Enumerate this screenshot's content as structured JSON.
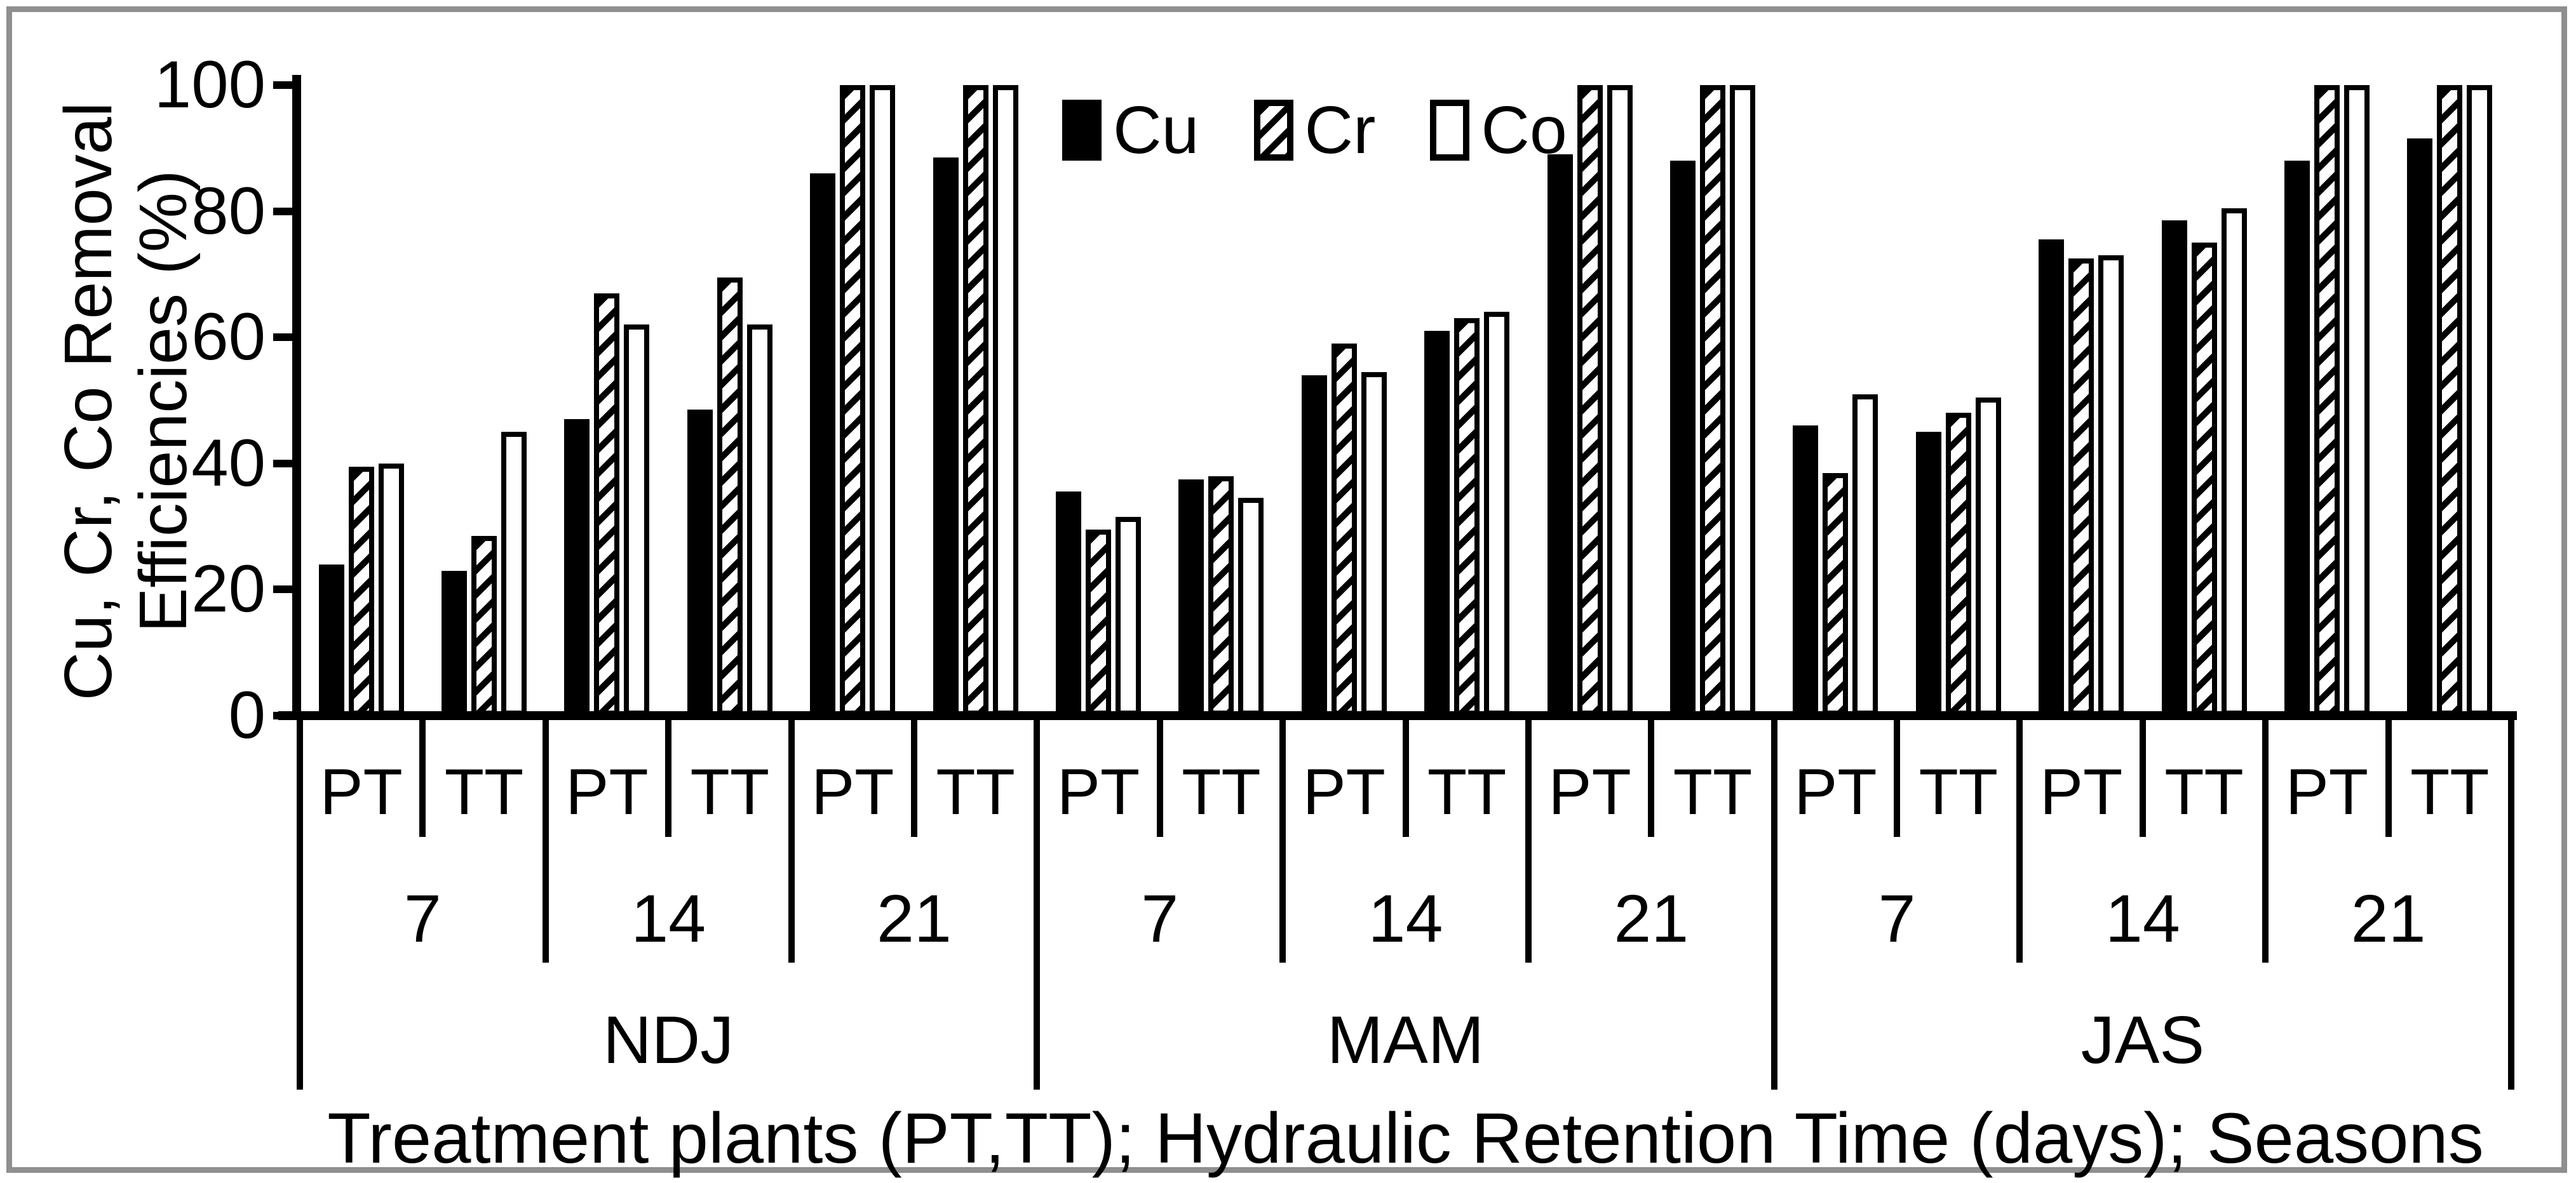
{
  "figure": {
    "background_color": "#ffffff",
    "frame_color": "#8f8f8f",
    "ink_color": "#000000"
  },
  "chart_data": {
    "type": "bar",
    "title": "",
    "ylabel": "Cu, Cr, Co Removal Efficiencies (%)",
    "xlabel": "Treatment plants (PT,TT); Hydraulic Retention Time (days); Seasons",
    "ylim": [
      0,
      100
    ],
    "yticks": [
      "0",
      "20",
      "40",
      "60",
      "80",
      "100"
    ],
    "ytick_values": [
      0,
      20,
      40,
      60,
      80,
      100
    ],
    "grid": false,
    "legend_position": "top-center",
    "legend": [
      "Cu",
      "Cr",
      "Co"
    ],
    "series_styles": {
      "Cu": {
        "pattern": "solid",
        "fill": "#000000"
      },
      "Cr": {
        "pattern": "diagonal-hatch",
        "fill": "#ffffff",
        "stripe": "#000000"
      },
      "Co": {
        "pattern": "none",
        "fill": "#ffffff",
        "border": "#000000"
      }
    },
    "structure": {
      "seasons": [
        "NDJ",
        "MAM",
        "JAS"
      ],
      "days_per_season": [
        "7",
        "14",
        "21"
      ],
      "plants_per_day": [
        "PT",
        "TT"
      ]
    },
    "categories": [
      "NDJ-7-PT",
      "NDJ-7-TT",
      "NDJ-14-PT",
      "NDJ-14-TT",
      "NDJ-21-PT",
      "NDJ-21-TT",
      "MAM-7-PT",
      "MAM-7-TT",
      "MAM-14-PT",
      "MAM-14-TT",
      "MAM-21-PT",
      "MAM-21-TT",
      "JAS-7-PT",
      "JAS-7-TT",
      "JAS-14-PT",
      "JAS-14-TT",
      "JAS-21-PT",
      "JAS-21-TT"
    ],
    "series": [
      {
        "name": "Cu",
        "values": [
          24,
          23,
          47,
          48.5,
          86,
          88.5,
          35.5,
          37.5,
          54,
          61,
          89,
          88,
          46,
          45,
          75.5,
          78.5,
          88,
          91.5
        ]
      },
      {
        "name": "Cr",
        "values": [
          39.5,
          28.5,
          67,
          69.5,
          100,
          100,
          29.5,
          38,
          59,
          63,
          100,
          100,
          38.5,
          48,
          72.5,
          75,
          100,
          100
        ]
      },
      {
        "name": "Co",
        "values": [
          40,
          45,
          62,
          62,
          100,
          100,
          31.5,
          34.5,
          54.5,
          64,
          100,
          100,
          51,
          50.5,
          73,
          80.5,
          100,
          100
        ]
      }
    ]
  }
}
